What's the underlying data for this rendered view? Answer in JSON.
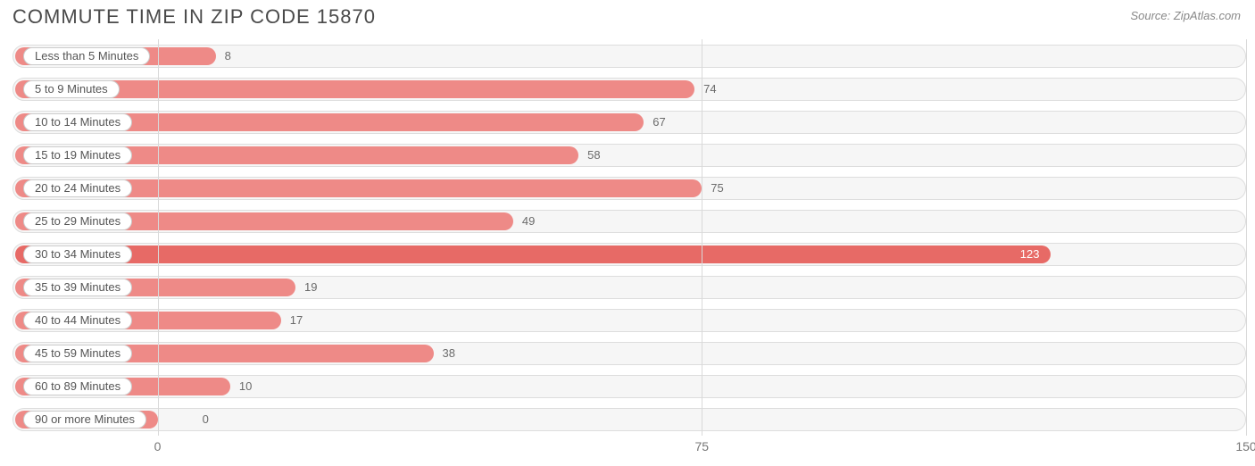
{
  "title": "COMMUTE TIME IN ZIP CODE 15870",
  "source": "Source: ZipAtlas.com",
  "chart": {
    "type": "bar-horizontal",
    "xlim": [
      -20,
      150
    ],
    "xticks": [
      0,
      75,
      150
    ],
    "track_bg": "#f6f6f6",
    "track_border": "#dddddd",
    "bar_color": "#ee8a87",
    "bar_color_highlight": "#e76a66",
    "pill_bg": "#ffffff",
    "pill_border": "#cccccc",
    "pill_text_color": "#555555",
    "value_text_color": "#6b6b6b",
    "value_text_color_inside": "#ffffff",
    "gridline_color": "#d9d9d9",
    "title_color": "#4a4a4a",
    "source_color": "#888888",
    "axis_label_color": "#777777",
    "label_fontsize": 13,
    "value_fontsize": 13,
    "title_fontsize": 22,
    "bars": [
      {
        "label": "Less than 5 Minutes",
        "value": 8,
        "highlight": false
      },
      {
        "label": "5 to 9 Minutes",
        "value": 74,
        "highlight": false
      },
      {
        "label": "10 to 14 Minutes",
        "value": 67,
        "highlight": false
      },
      {
        "label": "15 to 19 Minutes",
        "value": 58,
        "highlight": false
      },
      {
        "label": "20 to 24 Minutes",
        "value": 75,
        "highlight": false
      },
      {
        "label": "25 to 29 Minutes",
        "value": 49,
        "highlight": false
      },
      {
        "label": "30 to 34 Minutes",
        "value": 123,
        "highlight": true
      },
      {
        "label": "35 to 39 Minutes",
        "value": 19,
        "highlight": false
      },
      {
        "label": "40 to 44 Minutes",
        "value": 17,
        "highlight": false
      },
      {
        "label": "45 to 59 Minutes",
        "value": 38,
        "highlight": false
      },
      {
        "label": "60 to 89 Minutes",
        "value": 10,
        "highlight": false
      },
      {
        "label": "90 or more Minutes",
        "value": 0,
        "highlight": false
      }
    ]
  }
}
